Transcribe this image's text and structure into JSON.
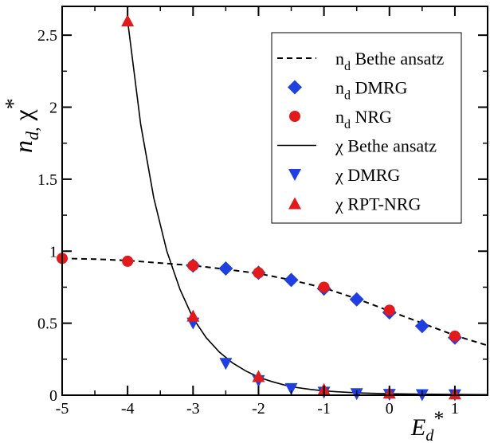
{
  "chart_data": {
    "type": "scatter",
    "title": "",
    "xlabel": "E_d*",
    "ylabel": "n_d, χ*",
    "xlim": [
      -5,
      1.5
    ],
    "ylim": [
      0,
      2.7
    ],
    "x_ticks": [
      -5,
      -4,
      -3,
      -2,
      -1,
      0,
      1
    ],
    "x_tick_labels": [
      "-5",
      "-4",
      "-3",
      "-2",
      "-1",
      "0",
      "1"
    ],
    "y_ticks": [
      0,
      0.5,
      1,
      1.5,
      2,
      2.5
    ],
    "y_tick_labels": [
      "0",
      "0.5",
      "1",
      "1.5",
      "2",
      "2.5"
    ],
    "grid": false,
    "legend_position": "top-right",
    "series": [
      {
        "name": "n_d Bethe ansatz",
        "style": "dashed-line",
        "color": "#000000",
        "x": [
          -5,
          -4.5,
          -4,
          -3.5,
          -3,
          -2.5,
          -2,
          -1.5,
          -1,
          -0.5,
          0,
          0.5,
          1,
          1.5
        ],
        "y": [
          0.95,
          0.945,
          0.935,
          0.918,
          0.9,
          0.875,
          0.845,
          0.8,
          0.745,
          0.67,
          0.585,
          0.5,
          0.415,
          0.345
        ]
      },
      {
        "name": "n_d DMRG",
        "style": "diamond",
        "color": "#1f3fe0",
        "x": [
          -3,
          -2.5,
          -2,
          -1.5,
          -1,
          -0.5,
          0,
          0.5,
          1
        ],
        "y": [
          0.9,
          0.88,
          0.85,
          0.8,
          0.74,
          0.665,
          0.575,
          0.48,
          0.4
        ]
      },
      {
        "name": "n_d NRG",
        "style": "circle",
        "color": "#e31a1c",
        "x": [
          -5,
          -4,
          -3,
          -2,
          -1,
          0,
          1
        ],
        "y": [
          0.95,
          0.93,
          0.9,
          0.85,
          0.75,
          0.59,
          0.41
        ]
      },
      {
        "name": "χ Bethe ansatz",
        "style": "solid-line",
        "color": "#000000",
        "x": [
          -4,
          -3.8,
          -3.6,
          -3.4,
          -3.2,
          -3,
          -2.8,
          -2.6,
          -2.4,
          -2.2,
          -2,
          -1.8,
          -1.6,
          -1.4,
          -1.2,
          -1,
          -0.8,
          -0.6,
          -0.4,
          -0.2,
          0,
          0.5,
          1,
          1.5
        ],
        "y": [
          2.6,
          1.88,
          1.37,
          1.0,
          0.735,
          0.535,
          0.4,
          0.3,
          0.225,
          0.17,
          0.125,
          0.095,
          0.07,
          0.052,
          0.04,
          0.03,
          0.024,
          0.019,
          0.015,
          0.012,
          0.01,
          0.007,
          0.005,
          0.004
        ]
      },
      {
        "name": "χ DMRG",
        "style": "triangle-down",
        "color": "#1f3fe0",
        "x": [
          -3,
          -2.5,
          -2,
          -1.5,
          -1,
          -0.5,
          0,
          0.5,
          1
        ],
        "y": [
          0.5,
          0.22,
          0.1,
          0.045,
          0.02,
          0.01,
          0.005,
          0.003,
          0.002
        ]
      },
      {
        "name": "χ RPT-NRG",
        "style": "triangle-up",
        "color": "#e31a1c",
        "x": [
          -4,
          -3,
          -2,
          -1,
          0,
          1
        ],
        "y": [
          2.6,
          0.55,
          0.13,
          0.04,
          0.015,
          0.01
        ]
      }
    ],
    "legend": [
      {
        "sym": "n",
        "sub": "d",
        "text": " Bethe ansatz"
      },
      {
        "sym": "n",
        "sub": "d",
        "text": " DMRG"
      },
      {
        "sym": "n",
        "sub": "d",
        "text": " NRG"
      },
      {
        "sym": "χ",
        "sub": "",
        "text": "  Bethe ansatz"
      },
      {
        "sym": "χ",
        "sub": "",
        "text": "  DMRG"
      },
      {
        "sym": "χ",
        "sub": "",
        "text": "  RPT-NRG"
      }
    ],
    "axis_labels": {
      "x": {
        "main": "E",
        "sub": "d",
        "sup": "*"
      },
      "y": {
        "main": "n",
        "sub": "d,",
        "mid": " χ",
        "sup": "*"
      }
    }
  }
}
